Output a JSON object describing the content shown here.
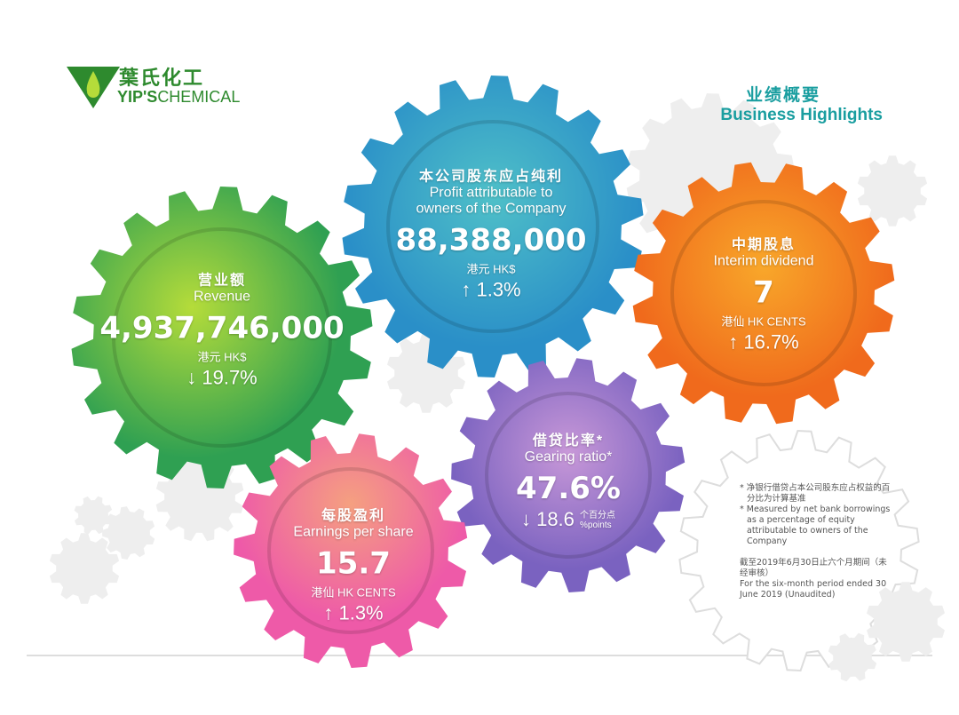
{
  "logo": {
    "cn": "葉氏化工",
    "en_bold": "YIP'S",
    "en": "CHEMICAL"
  },
  "heading": {
    "cn": "业绩概要",
    "en": "Business Highlights"
  },
  "colors": {
    "brand_green": "#2e8a2e",
    "heading_teal": "#1a9ea0",
    "revenue": "#6cc23a",
    "profit": "#2fa9c4",
    "dividend": "#f28a1c",
    "gearing": "#9a6cc6",
    "eps": "#f07a9a"
  },
  "gears": {
    "revenue": {
      "cn": "营业额",
      "en": "Revenue",
      "value": "4,937,746,000",
      "unit": "港元 HK$",
      "change": "↓ 19.7%"
    },
    "profit": {
      "cn": "本公司股东应占纯利",
      "en1": "Profit attributable to",
      "en2": "owners of the Company",
      "value": "88,388,000",
      "unit": "港元 HK$",
      "change": "↑ 1.3%"
    },
    "dividend": {
      "cn": "中期股息",
      "en": "Interim dividend",
      "value": "7",
      "unit": "港仙 HK CENTS",
      "change": "↑ 16.7%"
    },
    "gearing": {
      "cn": "借贷比率*",
      "en": "Gearing ratio*",
      "value": "47.6%",
      "change": "↓ 18.6",
      "change_unit_cn": "个百分点",
      "change_unit_en": "%points"
    },
    "eps": {
      "cn": "每股盈利",
      "en": "Earnings per share",
      "value": "15.7",
      "unit": "港仙 HK CENTS",
      "change": "↑ 1.3%"
    }
  },
  "notes": {
    "note_cn": "* 净银行借贷占本公司股东应占权益的百分比为计算基准",
    "note_en": "* Measured by net bank borrowings as a percentage of equity attributable to owners of the Company",
    "period_cn": "截至2019年6月30日止六个月期间（未经审核）",
    "period_en": "For the six-month period ended 30 June 2019 (Unaudited)"
  }
}
